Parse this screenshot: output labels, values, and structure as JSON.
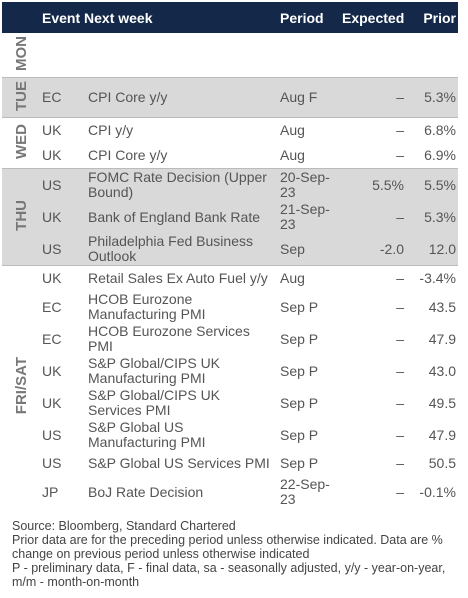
{
  "header": [
    "Event Next week",
    "Period",
    "Expected",
    "Prior"
  ],
  "groups": [
    {
      "day": "MON",
      "rows": []
    },
    {
      "day": "TUE",
      "rows": [
        [
          "EC",
          "CPI Core y/y",
          "Aug F",
          "–",
          "5.3%"
        ]
      ]
    },
    {
      "day": "WED",
      "rows": [
        [
          "UK",
          "CPI y/y",
          "Aug",
          "–",
          "6.8%"
        ],
        [
          "UK",
          "CPI Core y/y",
          "Aug",
          "–",
          "6.9%"
        ]
      ]
    },
    {
      "day": "THU",
      "rows": [
        [
          "US",
          "FOMC Rate Decision (Upper Bound)",
          "20-Sep-23",
          "5.5%",
          "5.5%"
        ],
        [
          "UK",
          "Bank of England Bank Rate",
          "21-Sep-23",
          "–",
          "5.3%"
        ],
        [
          "US",
          "Philadelphia Fed Business Outlook",
          "Sep",
          "-2.0",
          "12.0"
        ]
      ]
    },
    {
      "day": "FRI/SAT",
      "rows": [
        [
          "UK",
          "Retail Sales Ex Auto Fuel y/y",
          "Aug",
          "–",
          "-3.4%"
        ],
        [
          "EC",
          "HCOB Eurozone Manufacturing PMI",
          "Sep P",
          "–",
          "43.5"
        ],
        [
          "EC",
          "HCOB Eurozone Services PMI",
          "Sep P",
          "–",
          "47.9"
        ],
        [
          "UK",
          "S&P Global/CIPS UK Manufacturing PMI",
          "Sep P",
          "–",
          "43.0"
        ],
        [
          "UK",
          "S&P Global/CIPS UK Services PMI",
          "Sep P",
          "–",
          "49.5"
        ],
        [
          "US",
          "S&P Global US Manufacturing PMI",
          "Sep P",
          "–",
          "47.9"
        ],
        [
          "US",
          "S&P Global US Services PMI",
          "Sep P",
          "–",
          "50.5"
        ],
        [
          "JP",
          "BoJ Rate Decision",
          "22-Sep-23",
          "–",
          "-0.1%"
        ]
      ]
    }
  ],
  "footer": [
    "Source: Bloomberg, Standard Chartered",
    "Prior data are for the preceding period unless otherwise indicated. Data are % change on previous period unless otherwise indicated",
    "P - preliminary data, F - final data, sa - seasonally adjusted, y/y - year-on-year, m/m - month-on-month"
  ]
}
